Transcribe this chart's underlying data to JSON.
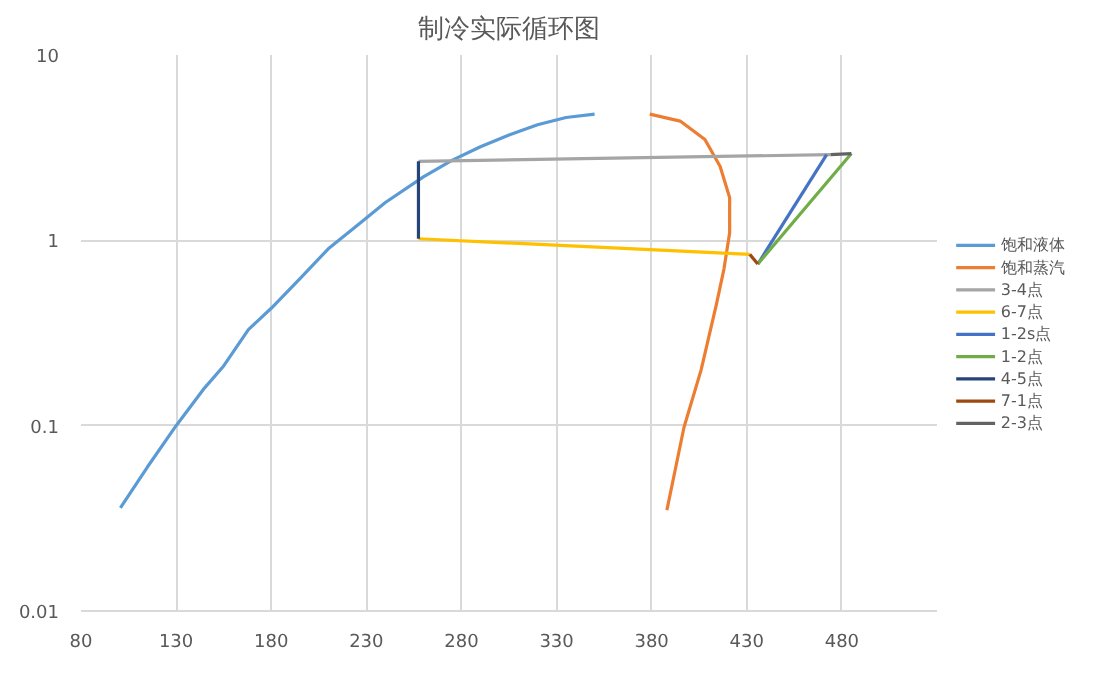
{
  "chart_data": {
    "type": "line",
    "title": "制冷实际循环图",
    "log": "y",
    "xlim": [
      80,
      530
    ],
    "xticks": [
      80,
      130,
      180,
      230,
      280,
      330,
      380,
      430,
      480
    ],
    "ylim": [
      0.01,
      10
    ],
    "yticks": [
      0.01,
      0.1,
      1,
      10
    ],
    "grid": true,
    "legend": "right",
    "marker": "none",
    "line_style": "solid",
    "series": [
      {
        "name": "饱和液体",
        "color": "#5b9bd5",
        "x": [
          100.7,
          115,
          130,
          145,
          155,
          168,
          180,
          195,
          210,
          225,
          240,
          260,
          275,
          290,
          305,
          320,
          335,
          350
        ],
        "values": [
          0.036,
          0.06,
          0.1,
          0.16,
          0.21,
          0.33,
          0.43,
          0.62,
          0.9,
          1.2,
          1.6,
          2.2,
          2.7,
          3.2,
          3.7,
          4.2,
          4.6,
          4.8
        ]
      },
      {
        "name": "饱和蒸汽",
        "color": "#ed7d31",
        "x": [
          379,
          395,
          408,
          416,
          421,
          421,
          418,
          414,
          406,
          397,
          388
        ],
        "values": [
          4.8,
          4.4,
          3.5,
          2.5,
          1.7,
          1.1,
          0.7,
          0.45,
          0.2,
          0.098,
          0.035
        ]
      },
      {
        "name": "3-4点",
        "color": "#a5a5a5",
        "x": [
          257.4,
          474
        ],
        "values": [
          2.67,
          2.9
        ]
      },
      {
        "name": "6-7点",
        "color": "#ffc000",
        "x": [
          257.4,
          431.6
        ],
        "values": [
          1.02,
          0.84
        ]
      },
      {
        "name": "1-2s点",
        "color": "#4472c4",
        "x": [
          435.8,
          472
        ],
        "values": [
          0.745,
          2.9
        ]
      },
      {
        "name": "1-2点",
        "color": "#70ad47",
        "x": [
          435.8,
          485
        ],
        "values": [
          0.745,
          2.94
        ]
      },
      {
        "name": "4-5点",
        "color": "#264478",
        "x": [
          257.4,
          257.4
        ],
        "values": [
          2.67,
          1.02
        ]
      },
      {
        "name": "7-1点",
        "color": "#9e480e",
        "x": [
          431.6,
          435.8
        ],
        "values": [
          0.84,
          0.745
        ]
      },
      {
        "name": "2-3点",
        "color": "#636363",
        "x": [
          485,
          474
        ],
        "values": [
          2.94,
          2.9
        ]
      }
    ]
  }
}
